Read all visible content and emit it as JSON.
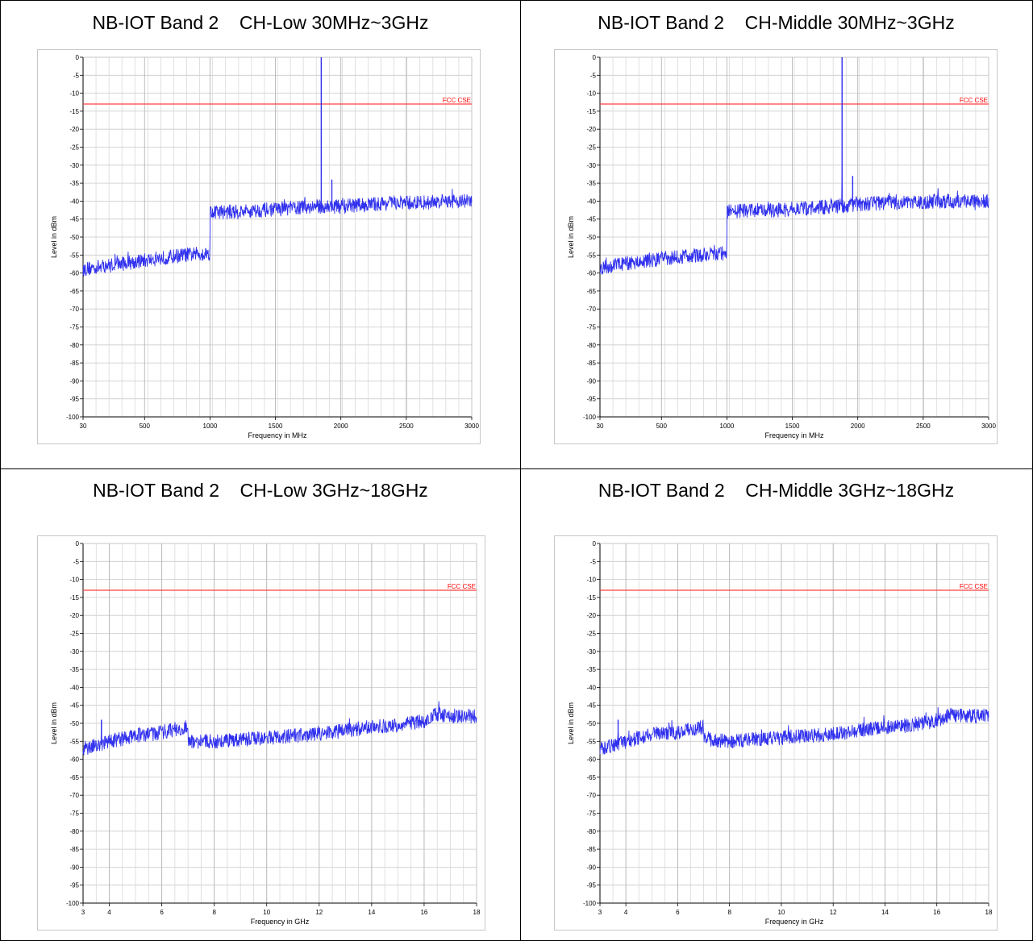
{
  "chart_data": [
    {
      "type": "line",
      "title": "NB-IOT Band 2    CH-Low 30MHz~3GHz",
      "xlabel": "Frequency in MHz",
      "ylabel": "Level in dBm",
      "xlim": [
        30,
        3000
      ],
      "ylim": [
        -100,
        0
      ],
      "x_ticks": [
        30,
        500,
        1000,
        1500,
        2000,
        2500,
        3000
      ],
      "x_tick_labels": [
        "30",
        "500",
        "1000",
        "1500",
        "2000",
        "2500",
        "3000"
      ],
      "y_ticks": [
        0,
        -5,
        -10,
        -15,
        -20,
        -25,
        -30,
        -35,
        -40,
        -45,
        -50,
        -55,
        -60,
        -65,
        -70,
        -75,
        -80,
        -85,
        -90,
        -95,
        -100
      ],
      "y_tick_labels": [
        "0",
        "-5",
        "-10",
        "-15",
        "-20",
        "-25",
        "-30",
        "-35",
        "-40",
        "-45",
        "-50",
        "-55",
        "-60",
        "-65",
        "-70",
        "-75",
        "-80",
        "-85",
        "-90",
        "-95",
        "-100"
      ],
      "grid": true,
      "limit_line": {
        "label": "FCC CSE",
        "value": -13,
        "color": "#ff4040"
      },
      "series": [
        {
          "color": "#3030ee",
          "x": [
            30,
            200,
            400,
            600,
            800,
            999,
            1001,
            1200,
            1400,
            1600,
            1800,
            1849,
            1850,
            1851,
            1900,
            1930,
            1931,
            1932,
            2000,
            2200,
            2400,
            2600,
            2800,
            3000
          ],
          "y": [
            -59,
            -58,
            -57,
            -56,
            -55,
            -54.5,
            -43,
            -43,
            -42.5,
            -42,
            -41.5,
            -41.5,
            0,
            -41.5,
            -41.5,
            -41.5,
            -34,
            -41.5,
            -41.5,
            -41,
            -40.5,
            -40.5,
            -40,
            -40
          ],
          "noise_band": 2.5
        }
      ]
    },
    {
      "type": "line",
      "title": "NB-IOT Band 2    CH-Middle 30MHz~3GHz",
      "xlabel": "Frequency in MHz",
      "ylabel": "Level in dBm",
      "xlim": [
        30,
        3000
      ],
      "ylim": [
        -100,
        0
      ],
      "x_ticks": [
        30,
        500,
        1000,
        1500,
        2000,
        2500,
        3000
      ],
      "x_tick_labels": [
        "30",
        "500",
        "1000",
        "1500",
        "2000",
        "2500",
        "3000"
      ],
      "y_ticks": [
        0,
        -5,
        -10,
        -15,
        -20,
        -25,
        -30,
        -35,
        -40,
        -45,
        -50,
        -55,
        -60,
        -65,
        -70,
        -75,
        -80,
        -85,
        -90,
        -95,
        -100
      ],
      "y_tick_labels": [
        "0",
        "-5",
        "-10",
        "-15",
        "-20",
        "-25",
        "-30",
        "-35",
        "-40",
        "-45",
        "-50",
        "-55",
        "-60",
        "-65",
        "-70",
        "-75",
        "-80",
        "-85",
        "-90",
        "-95",
        "-100"
      ],
      "grid": true,
      "limit_line": {
        "label": "FCC CSE",
        "value": -13,
        "color": "#ff4040"
      },
      "series": [
        {
          "color": "#3030ee",
          "x": [
            30,
            200,
            400,
            600,
            800,
            999,
            1001,
            1200,
            1400,
            1600,
            1800,
            1879,
            1880,
            1881,
            1900,
            1960,
            1961,
            1962,
            2000,
            2200,
            2400,
            2600,
            2800,
            3000
          ],
          "y": [
            -58.5,
            -57.5,
            -56.5,
            -55.5,
            -55,
            -54.5,
            -43,
            -42.5,
            -42.5,
            -42,
            -41.5,
            -41.5,
            0,
            -41.5,
            -41.5,
            -41,
            -33,
            -41,
            -41,
            -40.5,
            -40.5,
            -40,
            -40,
            -40
          ],
          "noise_band": 2.5
        }
      ]
    },
    {
      "type": "line",
      "title": "NB-IOT Band 2    CH-Low 3GHz~18GHz",
      "xlabel": "Frequency in GHz",
      "ylabel": "Level in dBm",
      "xlim": [
        3,
        18
      ],
      "ylim": [
        -100,
        0
      ],
      "x_ticks": [
        3,
        4,
        6,
        8,
        10,
        12,
        14,
        16,
        18
      ],
      "x_tick_labels": [
        "3",
        "4",
        "6",
        "8",
        "10",
        "12",
        "14",
        "16",
        "18"
      ],
      "y_ticks": [
        0,
        -5,
        -10,
        -15,
        -20,
        -25,
        -30,
        -35,
        -40,
        -45,
        -50,
        -55,
        -60,
        -65,
        -70,
        -75,
        -80,
        -85,
        -90,
        -95,
        -100
      ],
      "y_tick_labels": [
        "0",
        "-5",
        "-10",
        "-15",
        "-20",
        "-25",
        "-30",
        "-35",
        "-40",
        "-45",
        "-50",
        "-55",
        "-60",
        "-65",
        "-70",
        "-75",
        "-80",
        "-85",
        "-90",
        "-95",
        "-100"
      ],
      "grid": true,
      "limit_line": {
        "label": "FCC CSE",
        "value": -13,
        "color": "#ff4040"
      },
      "series": [
        {
          "color": "#3030ee",
          "x": [
            3,
            3.6,
            3.69,
            3.7,
            3.71,
            4,
            5,
            6,
            6.99,
            7.01,
            8,
            9,
            10,
            11,
            12,
            13,
            14,
            15,
            15.9,
            16.5,
            17,
            18
          ],
          "y": [
            -57,
            -56,
            -56,
            -49,
            -56,
            -55,
            -53.5,
            -52.5,
            -51,
            -55,
            -55,
            -54.5,
            -54,
            -53.5,
            -53,
            -52,
            -51,
            -50.5,
            -49.5,
            -47.5,
            -48,
            -48
          ],
          "noise_band": 2.5
        }
      ]
    },
    {
      "type": "line",
      "title": "NB-IOT Band 2    CH-Middle 3GHz~18GHz",
      "xlabel": "Frequency in GHz",
      "ylabel": "Level in dBm",
      "xlim": [
        3,
        18
      ],
      "ylim": [
        -100,
        0
      ],
      "x_ticks": [
        3,
        4,
        6,
        8,
        10,
        12,
        14,
        16,
        18
      ],
      "x_tick_labels": [
        "3",
        "4",
        "6",
        "8",
        "10",
        "12",
        "14",
        "16",
        "18"
      ],
      "y_ticks": [
        0,
        -5,
        -10,
        -15,
        -20,
        -25,
        -30,
        -35,
        -40,
        -45,
        -50,
        -55,
        -60,
        -65,
        -70,
        -75,
        -80,
        -85,
        -90,
        -95,
        -100
      ],
      "y_tick_labels": [
        "0",
        "-5",
        "-10",
        "-15",
        "-20",
        "-25",
        "-30",
        "-35",
        "-40",
        "-45",
        "-50",
        "-55",
        "-60",
        "-65",
        "-70",
        "-75",
        "-80",
        "-85",
        "-90",
        "-95",
        "-100"
      ],
      "grid": true,
      "limit_line": {
        "label": "FCC CSE",
        "value": -13,
        "color": "#ff4040"
      },
      "series": [
        {
          "color": "#3030ee",
          "x": [
            3,
            3.6,
            3.69,
            3.7,
            3.71,
            4,
            5,
            6,
            6.99,
            7.01,
            8,
            9,
            10,
            11,
            12,
            13,
            14,
            15,
            15.9,
            16.5,
            17,
            18
          ],
          "y": [
            -57,
            -56,
            -56,
            -49,
            -56,
            -55,
            -53,
            -52.5,
            -51,
            -54.5,
            -55,
            -54.5,
            -54,
            -53.5,
            -53,
            -52,
            -51,
            -50.5,
            -49.5,
            -47.5,
            -48,
            -48
          ],
          "noise_band": 2.5
        }
      ]
    }
  ]
}
